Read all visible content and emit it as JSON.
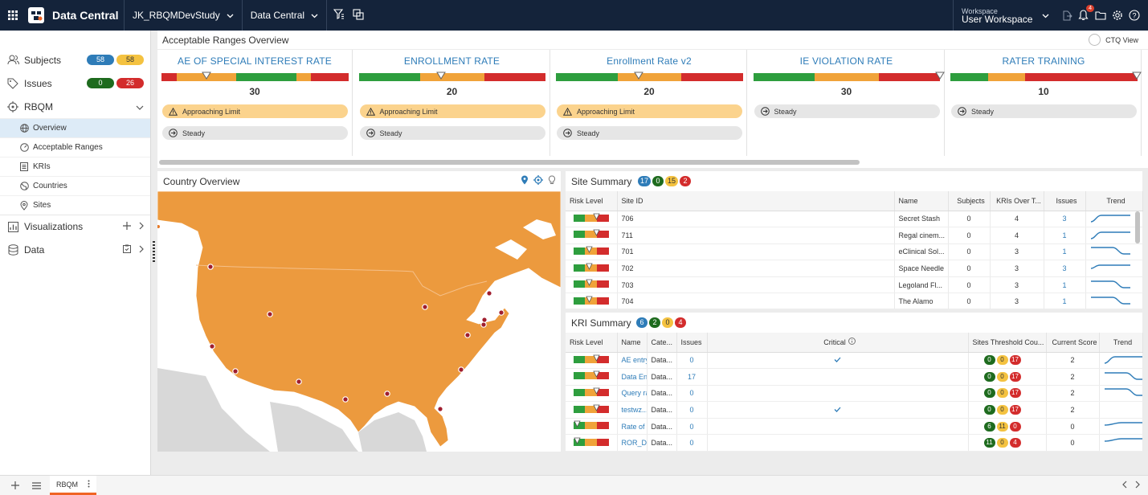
{
  "topbar": {
    "app_title": "Data Central",
    "study": "JK_RBQMDevStudy",
    "area": "Data Central",
    "workspace_label": "Workspace",
    "workspace_name": "User Workspace",
    "notification_count": "4",
    "brand_color": "#14233a"
  },
  "sidebar": {
    "subjects": {
      "label": "Subjects",
      "b1": "58",
      "b2": "58"
    },
    "issues": {
      "label": "Issues",
      "b1": "0",
      "b2": "26"
    },
    "rbqm": {
      "label": "RBQM"
    },
    "sub_items": [
      {
        "label": "Overview",
        "icon": "globe-icon"
      },
      {
        "label": "Acceptable Ranges",
        "icon": "gauge-icon"
      },
      {
        "label": "KRIs",
        "icon": "list-icon"
      },
      {
        "label": "Countries",
        "icon": "globe-icon"
      },
      {
        "label": "Sites",
        "icon": "pin-icon"
      }
    ],
    "visualizations": {
      "label": "Visualizations"
    },
    "data": {
      "label": "Data"
    }
  },
  "overview": {
    "title": "Acceptable Ranges Overview",
    "ctq_label": "CTQ View"
  },
  "cards": [
    {
      "title": "AE OF SPECIAL INTEREST RATE",
      "value": "30",
      "marker": 0.24,
      "statuses": [
        "Approaching Limit",
        "Steady"
      ]
    },
    {
      "title": "ENROLLMENT RATE",
      "value": "20",
      "marker": 0.44,
      "statuses": [
        "Approaching Limit",
        "Steady"
      ]
    },
    {
      "title": "Enrollment Rate v2",
      "value": "20",
      "marker": 0.44,
      "statuses": [
        "Approaching Limit",
        "Steady"
      ]
    },
    {
      "title": "IE VIOLATION RATE",
      "value": "30",
      "marker": 1.0,
      "statuses": [
        "Steady"
      ]
    },
    {
      "title": "RATER TRAINING",
      "value": "10",
      "marker": 1.0,
      "statuses": [
        "Steady"
      ]
    }
  ],
  "country": {
    "title": "Country Overview"
  },
  "site_summary": {
    "title": "Site Summary",
    "badges": [
      "17",
      "0",
      "15",
      "2"
    ],
    "columns": [
      "Risk Level",
      "Site ID",
      "Name",
      "Subjects",
      "KRIs Over T...",
      "Issues",
      "Trend"
    ],
    "rows": [
      {
        "site": "706",
        "name": "Secret Stash",
        "subjects": "0",
        "kris": "4",
        "issues": "3"
      },
      {
        "site": "711",
        "name": "Regal cinem...",
        "subjects": "0",
        "kris": "4",
        "issues": "1"
      },
      {
        "site": "701",
        "name": "eClinical Sol...",
        "subjects": "0",
        "kris": "3",
        "issues": "1"
      },
      {
        "site": "702",
        "name": "Space Needle",
        "subjects": "0",
        "kris": "3",
        "issues": "3"
      },
      {
        "site": "703",
        "name": "Legoland Fl...",
        "subjects": "0",
        "kris": "3",
        "issues": "1"
      },
      {
        "site": "704",
        "name": "The Alamo",
        "subjects": "0",
        "kris": "3",
        "issues": "1"
      }
    ]
  },
  "kri_summary": {
    "title": "KRI Summary",
    "badges": [
      "6",
      "2",
      "0",
      "4"
    ],
    "columns": [
      "Risk Level",
      "Name",
      "Cate...",
      "Issues",
      "Critical",
      "Sites Threshold Cou...",
      "Current Score",
      "Trend"
    ],
    "rows": [
      {
        "name": "AE entry",
        "cat": "Data...",
        "issues": "0",
        "critical": true,
        "t1": "0",
        "t2": "0",
        "t3": "17",
        "score": "2"
      },
      {
        "name": "Data En",
        "cat": "Data...",
        "issues": "17",
        "critical": false,
        "t1": "0",
        "t2": "0",
        "t3": "17",
        "score": "2"
      },
      {
        "name": "Query ra",
        "cat": "Data...",
        "issues": "0",
        "critical": false,
        "t1": "0",
        "t2": "0",
        "t3": "17",
        "score": "2"
      },
      {
        "name": "testwz...",
        "cat": "Data...",
        "issues": "0",
        "critical": true,
        "t1": "0",
        "t2": "0",
        "t3": "17",
        "score": "2"
      },
      {
        "name": "Rate of",
        "cat": "Data...",
        "issues": "0",
        "critical": false,
        "t1": "6",
        "t2": "11",
        "t3": "0",
        "score": "0"
      },
      {
        "name": "ROR_Dia",
        "cat": "Data...",
        "issues": "0",
        "critical": false,
        "t1": "11",
        "t2": "0",
        "t3": "4",
        "score": "0"
      }
    ]
  },
  "bottom": {
    "sheet": "RBQM"
  },
  "colors": {
    "green": "#2e9e3e",
    "orange": "#f0a33a",
    "red": "#d32c2c",
    "blue": "#2e7cb8",
    "yellow": "#f4c240",
    "darkgreen": "#1e6b1e"
  }
}
